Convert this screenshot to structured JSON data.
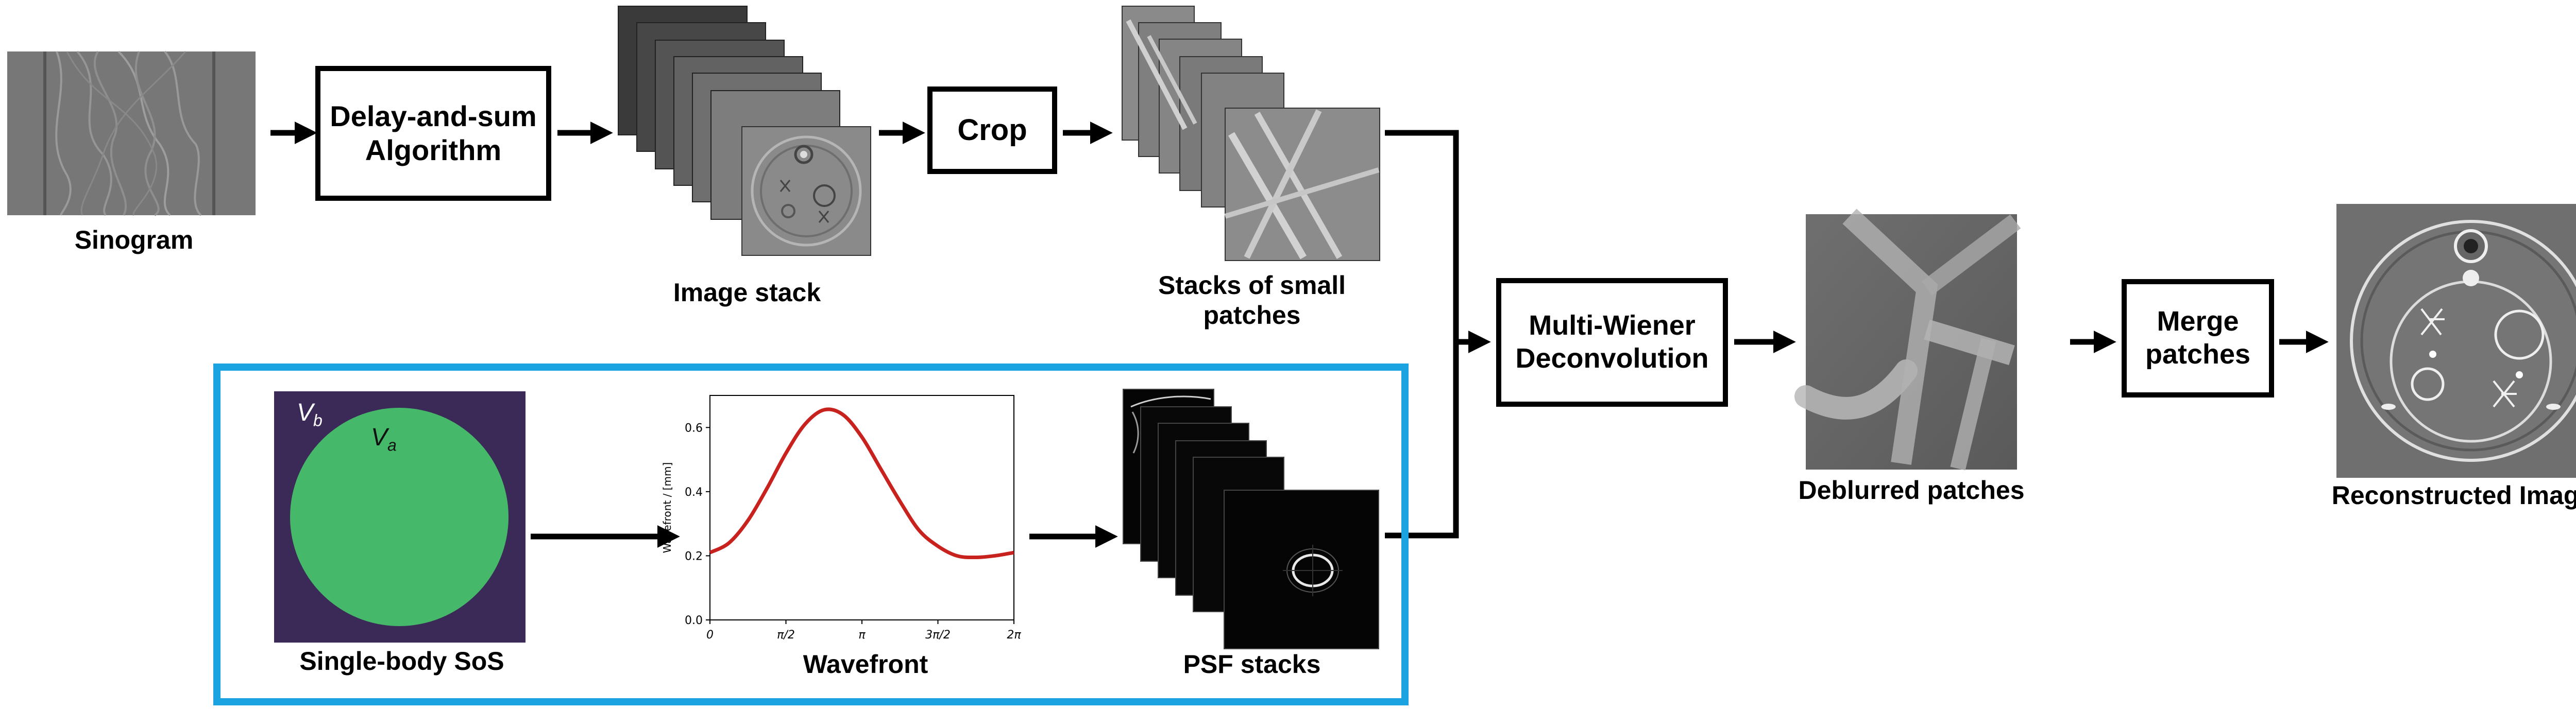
{
  "labels": {
    "sinogram": "Sinogram",
    "delay_and_sum_line1": "Delay-and-sum",
    "delay_and_sum_line2": "Algorithm",
    "image_stack": "Image stack",
    "crop": "Crop",
    "stacks_small_patches_line1": "Stacks of small",
    "stacks_small_patches_line2": "patches",
    "multi_wiener_line1": "Multi-Wiener",
    "multi_wiener_line2": "Deconvolution",
    "deblurred_patches": "Deblurred patches",
    "merge_line1": "Merge",
    "merge_line2": "patches",
    "reconstructed_image": "Reconstructed Image",
    "single_body_sos": "Single-body SoS",
    "wavefront": "Wavefront",
    "psf_stacks": "PSF stacks",
    "v_b": "V",
    "v_b_sub": "b",
    "v_a": "V",
    "v_a_sub": "a"
  },
  "colors": {
    "sos_background": "#3b2a57",
    "sos_circle": "#45b86a",
    "wavefront_curve": "#c8221f",
    "blue_frame": "#1aa3e0"
  },
  "chart_data": {
    "type": "line",
    "title": "",
    "xlabel": "",
    "ylabel": "Wavefront / [mm]",
    "xlim": [
      0,
      6.2832
    ],
    "ylim": [
      0.0,
      0.7
    ],
    "xticks": [
      0,
      1.5708,
      3.1416,
      4.7124,
      6.2832
    ],
    "xtick_labels": [
      "0",
      "π/2",
      "π",
      "3π/2",
      "2π"
    ],
    "yticks": [
      0.0,
      0.2,
      0.4,
      0.6
    ],
    "ytick_labels": [
      "0.0",
      "0.2",
      "0.4",
      "0.6"
    ],
    "grid": false,
    "series": [
      {
        "x": [
          0,
          0.393,
          0.785,
          1.178,
          1.571,
          1.963,
          2.356,
          2.749,
          3.142,
          3.534,
          3.927,
          4.32,
          4.712,
          5.105,
          5.498,
          5.89,
          6.283
        ],
        "values": [
          0.21,
          0.24,
          0.31,
          0.41,
          0.52,
          0.61,
          0.655,
          0.64,
          0.57,
          0.47,
          0.37,
          0.28,
          0.23,
          0.2,
          0.195,
          0.2,
          0.21
        ]
      }
    ]
  }
}
